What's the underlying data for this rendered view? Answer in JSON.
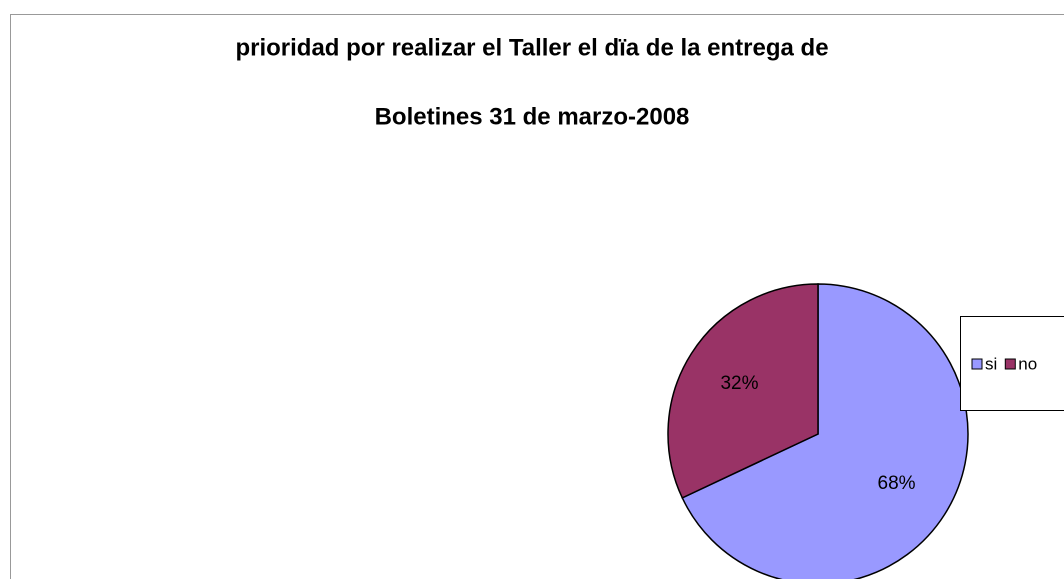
{
  "chart_data": {
    "type": "pie",
    "title": [
      "prioridad por realizar el  Taller el dïa  de la entrega de",
      "Boletines 31 de marzo-2008"
    ],
    "categories": [
      "si",
      "no"
    ],
    "values": [
      68,
      32
    ],
    "value_labels": [
      "68%",
      "32%"
    ],
    "colors": [
      "#9999ff",
      "#993366"
    ],
    "legend": "right"
  }
}
